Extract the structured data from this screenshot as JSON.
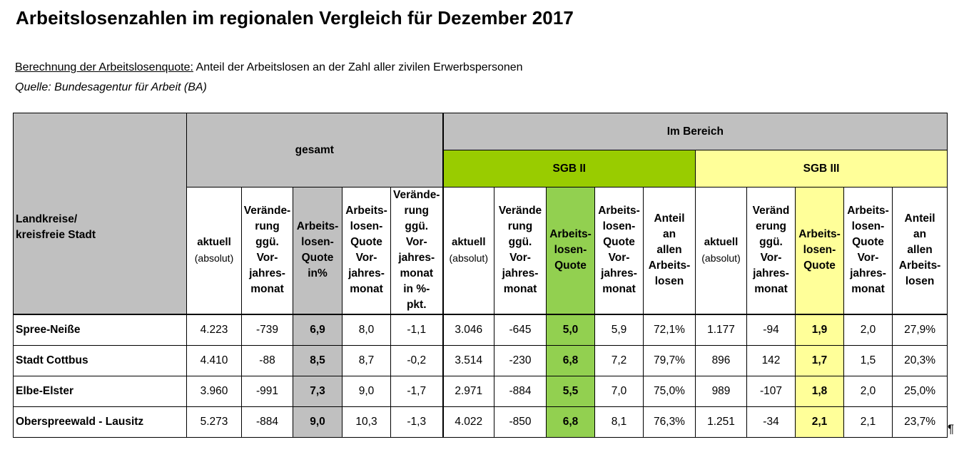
{
  "title": "Arbeitslosenzahlen im regionalen Vergleich für Dezember 2017",
  "calc_label": "Berechnung der Arbeitslosenquote:",
  "calc_text": " Anteil der Arbeitslosen an der Zahl aller zivilen Erwerbspersonen",
  "source": "Quelle: Bundesagentur für Arbeit (BA)",
  "pilcrow": "¶",
  "table": {
    "corner_line1": "Landkreise/",
    "corner_line2": "kreisfreie Stadt",
    "group_gesamt": "gesamt",
    "group_bereich": "Im Bereich",
    "group_sgb2": "SGB II",
    "group_sgb3": "SGB III",
    "h_g_aktuell": "aktuell",
    "h_g_absolut": "(absolut)",
    "h_g_ver": [
      "Verände-",
      "rung",
      "ggü.",
      "Vor-",
      "jahres-",
      "monat"
    ],
    "h_g_quote": [
      "Arbeits-",
      "losen-",
      "Quote",
      "in%"
    ],
    "h_g_quote_vj": [
      "Arbeits-",
      "losen-",
      "Quote",
      "Vor-",
      "jahres-",
      "monat"
    ],
    "h_g_ver_pkt": [
      "Verände-",
      "rung",
      "ggü.",
      "Vor-",
      "jahres-",
      "monat",
      "in %-",
      "pkt."
    ],
    "h_2_aktuell": "aktuell",
    "h_2_absolut": "(absolut)",
    "h_2_ver": [
      "Verände",
      "rung",
      "ggü.",
      "Vor-",
      "jahres-",
      "monat"
    ],
    "h_2_quote": [
      "Arbeits-",
      "losen-",
      "Quote"
    ],
    "h_2_quote_vj": [
      "Arbeits-",
      "losen-",
      "Quote",
      "Vor-",
      "jahres-",
      "monat"
    ],
    "h_2_anteil": [
      "Anteil",
      "an",
      "allen",
      "Arbeits-",
      "losen"
    ],
    "h_3_aktuell": "aktuell",
    "h_3_absolut": "(absolut)",
    "h_3_ver": [
      "Veränd",
      "erung",
      "ggü.",
      "Vor-",
      "jahres-",
      "monat"
    ],
    "h_3_quote": [
      "Arbeits-",
      "losen-",
      "Quote"
    ],
    "h_3_quote_vj": [
      "Arbeits-",
      "losen-",
      "Quote",
      "Vor-",
      "jahres-",
      "monat"
    ],
    "h_3_anteil": [
      "Anteil",
      "an",
      "allen",
      "Arbeits-",
      "losen"
    ],
    "rows": [
      {
        "name": "Spree-Neiße",
        "g_akt": "4.223",
        "g_ver": "-739",
        "g_quote": "6,9",
        "g_quote_vj": "8,0",
        "g_ver_pkt": "-1,1",
        "s2_akt": "3.046",
        "s2_ver": "-645",
        "s2_quote": "5,0",
        "s2_quote_vj": "5,9",
        "s2_anteil": "72,1%",
        "s3_akt": "1.177",
        "s3_ver": "-94",
        "s3_quote": "1,9",
        "s3_quote_vj": "2,0",
        "s3_anteil": "27,9%"
      },
      {
        "name": "Stadt Cottbus",
        "g_akt": "4.410",
        "g_ver": "-88",
        "g_quote": "8,5",
        "g_quote_vj": "8,7",
        "g_ver_pkt": "-0,2",
        "s2_akt": "3.514",
        "s2_ver": "-230",
        "s2_quote": "6,8",
        "s2_quote_vj": "7,2",
        "s2_anteil": "79,7%",
        "s3_akt": "896",
        "s3_ver": "142",
        "s3_quote": "1,7",
        "s3_quote_vj": "1,5",
        "s3_anteil": "20,3%"
      },
      {
        "name": "Elbe-Elster",
        "g_akt": "3.960",
        "g_ver": "-991",
        "g_quote": "7,3",
        "g_quote_vj": "9,0",
        "g_ver_pkt": "-1,7",
        "s2_akt": "2.971",
        "s2_ver": "-884",
        "s2_quote": "5,5",
        "s2_quote_vj": "7,0",
        "s2_anteil": "75,0%",
        "s3_akt": "989",
        "s3_ver": "-107",
        "s3_quote": "1,8",
        "s3_quote_vj": "2,0",
        "s3_anteil": "25,0%"
      },
      {
        "name": "Oberspreewald - Lausitz",
        "g_akt": "5.273",
        "g_ver": "-884",
        "g_quote": "9,0",
        "g_quote_vj": "10,3",
        "g_ver_pkt": "-1,3",
        "s2_akt": "4.022",
        "s2_ver": "-850",
        "s2_quote": "6,8",
        "s2_quote_vj": "8,1",
        "s2_anteil": "76,3%",
        "s3_akt": "1.251",
        "s3_ver": "-34",
        "s3_quote": "2,1",
        "s3_quote_vj": "2,1",
        "s3_anteil": "23,7%"
      }
    ]
  }
}
